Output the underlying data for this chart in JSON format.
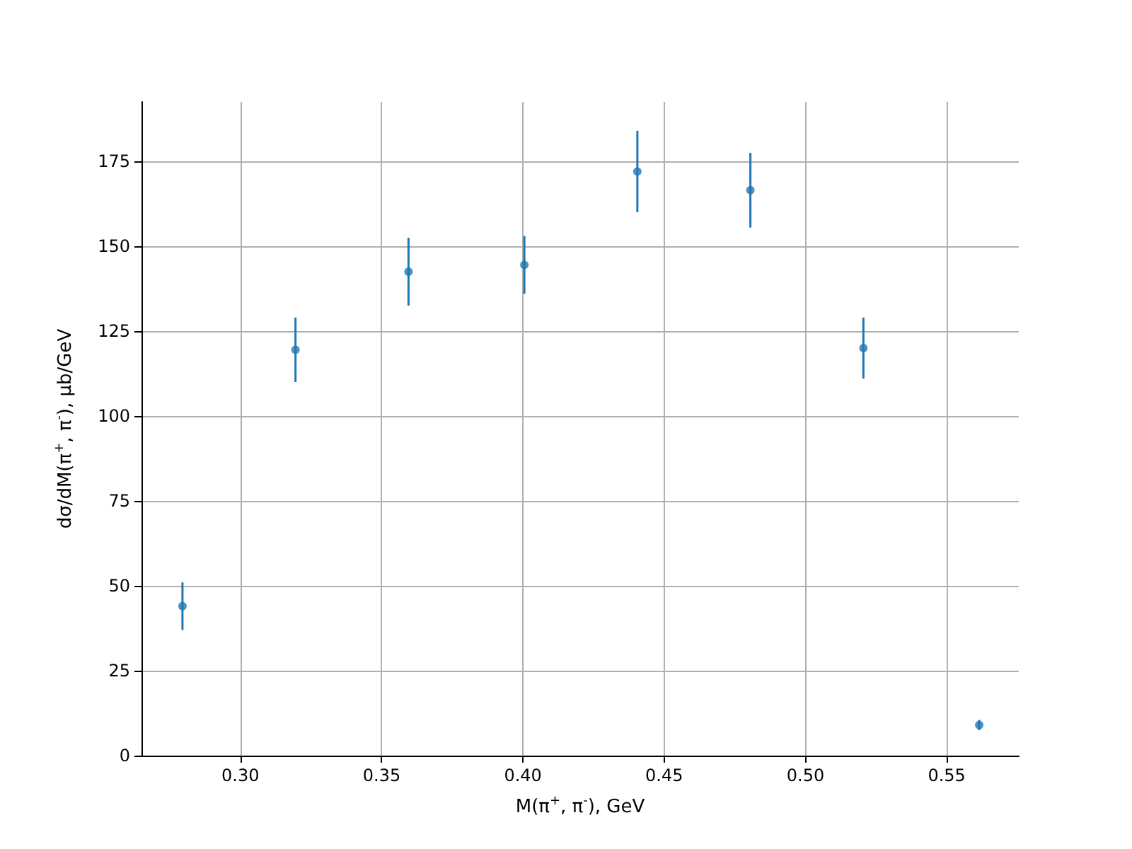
{
  "chart_data": {
    "type": "scatter",
    "xlabel": "M(π$^{+}$, π$^{-}$), GeV",
    "ylabel": "dσ/dM(π$^{+}$, π$^{-}$), μb/GeV",
    "x": [
      0.2795,
      0.3195,
      0.3595,
      0.4005,
      0.4405,
      0.4805,
      0.5205,
      0.5615
    ],
    "values": [
      44,
      119.5,
      142.5,
      144.5,
      172,
      166.5,
      120,
      9
    ],
    "errors": [
      7,
      9.5,
      10,
      8.5,
      12,
      11,
      9,
      1.5
    ],
    "color": "#1f77b4",
    "marker": "circle",
    "grid": true,
    "xlim": [
      0.265,
      0.5755
    ],
    "xticks": [
      {
        "value": 0.3,
        "label": "0.30"
      },
      {
        "value": 0.35,
        "label": "0.35"
      },
      {
        "value": 0.4,
        "label": "0.40"
      },
      {
        "value": 0.45,
        "label": "0.45"
      },
      {
        "value": 0.5,
        "label": "0.50"
      },
      {
        "value": 0.55,
        "label": "0.55"
      }
    ],
    "ylim": [
      0,
      192.5
    ],
    "yticks": [
      0,
      25,
      50,
      75,
      100,
      125,
      150,
      175
    ]
  }
}
